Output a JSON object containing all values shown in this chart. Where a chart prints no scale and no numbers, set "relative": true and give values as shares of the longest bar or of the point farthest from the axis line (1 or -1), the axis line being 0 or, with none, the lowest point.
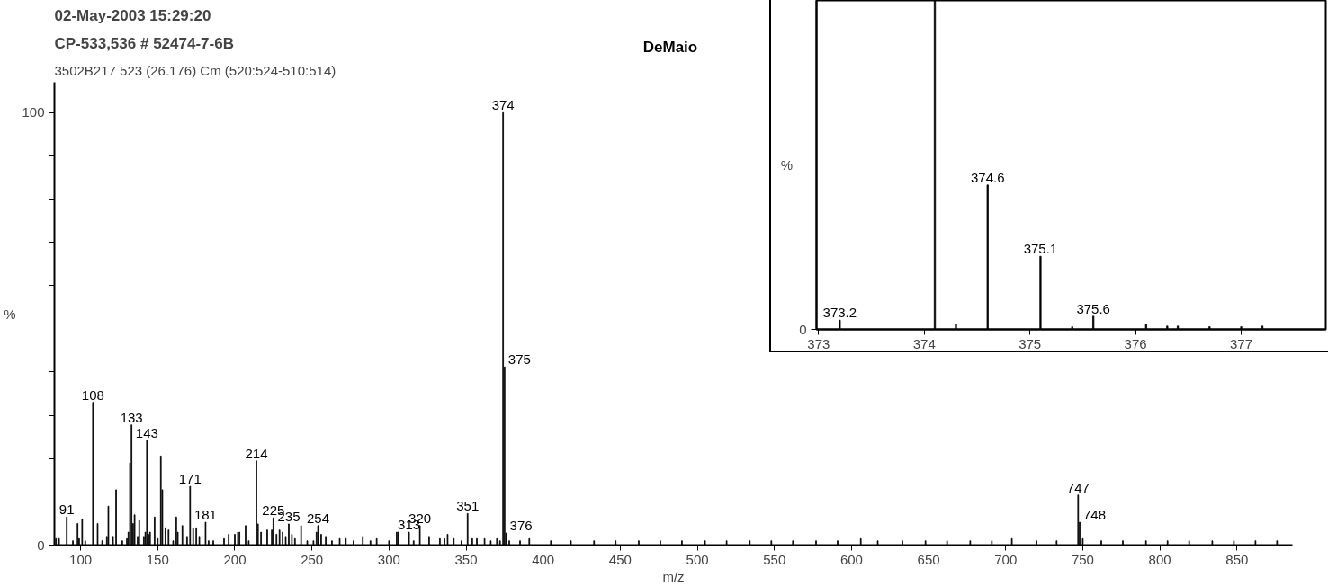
{
  "chart_data": [
    {
      "type": "bar",
      "title": "02-May-2003 15:29:20",
      "subtitle": "CP-533,536 # 52474-7-6B",
      "xlabel": "m/z",
      "ylabel": "%",
      "annotations": [
        "3502B217 523 (26.176) Cm (520:524-510:514)",
        "DeMaio",
        {
          "text": "91",
          "x": 91,
          "y": 6.5
        },
        {
          "text": "108",
          "x": 108,
          "y": 33
        },
        {
          "text": "133",
          "x": 133,
          "y": 27.8
        },
        {
          "text": "143",
          "x": 143,
          "y": 24.3
        },
        {
          "text": "171",
          "x": 171,
          "y": 13.6
        },
        {
          "text": "181",
          "x": 181,
          "y": 5.3
        },
        {
          "text": "214",
          "x": 214,
          "y": 19.5
        },
        {
          "text": "225",
          "x": 225,
          "y": 6.3
        },
        {
          "text": "235",
          "x": 235,
          "y": 4.9
        },
        {
          "text": "254",
          "x": 254,
          "y": 4.5
        },
        {
          "text": "313",
          "x": 313,
          "y": 3
        },
        {
          "text": "320",
          "x": 320,
          "y": 4.5
        },
        {
          "text": "351",
          "x": 351,
          "y": 7.3
        },
        {
          "text": "374",
          "x": 374,
          "y": 100
        },
        {
          "text": "375",
          "x": 375,
          "y": 41.2
        },
        {
          "text": "376",
          "x": 376,
          "y": 2.8
        },
        {
          "text": "747",
          "x": 747,
          "y": 11.6
        },
        {
          "text": "748",
          "x": 748,
          "y": 5.3
        }
      ],
      "x": [
        84,
        86,
        91,
        95,
        98,
        99,
        101,
        103,
        108,
        111,
        114,
        117,
        118,
        121,
        123,
        127,
        130,
        131,
        132,
        133,
        134,
        135,
        137,
        138,
        141,
        142,
        143,
        144,
        145,
        148,
        150,
        152,
        153,
        155,
        157,
        160,
        162,
        163,
        166,
        169,
        171,
        173,
        175,
        177,
        181,
        183,
        186,
        193,
        196,
        200,
        202,
        203,
        207,
        209,
        214,
        215,
        217,
        221,
        224,
        225,
        227,
        229,
        231,
        233,
        235,
        237,
        239,
        243,
        247,
        251,
        253,
        254,
        256,
        259,
        263,
        268,
        272,
        277,
        283,
        288,
        292,
        300,
        305,
        306,
        313,
        316,
        320,
        326,
        333,
        336,
        338,
        342,
        347,
        351,
        354,
        357,
        362,
        366,
        370,
        372,
        374,
        375,
        376,
        378,
        385,
        391,
        405,
        418,
        433,
        447,
        462,
        476,
        490,
        505,
        519,
        534,
        548,
        562,
        577,
        591,
        606,
        617,
        633,
        648,
        662,
        677,
        691,
        704,
        720,
        733,
        747,
        748,
        750,
        762,
        776,
        791,
        805,
        819,
        834,
        848,
        862,
        876
      ],
      "values": [
        1.5,
        1.5,
        6.5,
        1,
        5,
        1.5,
        6,
        1,
        33,
        5,
        1,
        2,
        9,
        2,
        12.8,
        1,
        1.5,
        3,
        19,
        27.8,
        5,
        7,
        2,
        5.7,
        2,
        3,
        24.3,
        2.5,
        3,
        6.5,
        1.5,
        20.6,
        12.8,
        4,
        3.5,
        1,
        6.5,
        3,
        4.5,
        2,
        13.6,
        4,
        4,
        2,
        5.3,
        1,
        1,
        1.5,
        2.5,
        2.5,
        3,
        3,
        4.5,
        1,
        19.5,
        4.9,
        3,
        3.5,
        3.5,
        6.3,
        2.5,
        3.5,
        3,
        2,
        4.9,
        2.5,
        1.5,
        4.5,
        1,
        1,
        3,
        4.5,
        2.5,
        2,
        1,
        1.5,
        1.5,
        1,
        2,
        1,
        1.5,
        1,
        3,
        3,
        3,
        1,
        4.5,
        2,
        1.5,
        1.5,
        2.5,
        1.5,
        1,
        7.3,
        1.5,
        1.5,
        1.5,
        1,
        1.5,
        1,
        100,
        41.2,
        2.8,
        1,
        1,
        1.5,
        1,
        1,
        1,
        1,
        1,
        1,
        1,
        1,
        1,
        1,
        1,
        1,
        1,
        1,
        1.5,
        1,
        1,
        1,
        1,
        1,
        1,
        1.5,
        1,
        1,
        11.6,
        5.3,
        1.5,
        1,
        1,
        1,
        1,
        1,
        1,
        1,
        1,
        1
      ],
      "color": "#000000",
      "xlim": [
        83,
        886
      ],
      "xticks": [
        100,
        150,
        200,
        250,
        300,
        350,
        400,
        450,
        500,
        550,
        600,
        650,
        700,
        750,
        800,
        850
      ],
      "ylim": [
        0,
        107
      ],
      "yticks": [
        0,
        {
          "value": 10,
          "label": null
        },
        {
          "value": 20,
          "label": null
        },
        {
          "value": 30,
          "label": null
        },
        {
          "value": 40,
          "label": null
        },
        {
          "value": 60,
          "label": null
        },
        {
          "value": 70,
          "label": null
        },
        {
          "value": 80,
          "label": null
        },
        {
          "value": 90,
          "label": null
        },
        100
      ],
      "grid": false
    },
    {
      "type": "bar",
      "ylabel": "%",
      "relative": true,
      "annotations": [
        "0",
        {
          "text": "373.2",
          "x": 373.2,
          "y": 0.028
        },
        {
          "text": "374.6",
          "x": 374.6,
          "y": 0.439
        },
        {
          "text": "375.1",
          "x": 375.1,
          "y": 0.222
        },
        {
          "text": "375.6",
          "x": 375.6,
          "y": 0.04
        }
      ],
      "x": [
        373.2,
        374.1,
        374.3,
        374.6,
        375.1,
        375.4,
        375.6,
        376.1,
        376.3,
        376.4,
        376.7,
        377.0,
        377.2
      ],
      "values": [
        0.028,
        1,
        0.015,
        0.439,
        0.222,
        0.008,
        0.04,
        0.015,
        0.01,
        0.01,
        0.008,
        0.008,
        0.01
      ],
      "color": "#000000",
      "xlim": [
        372.98,
        377.8
      ],
      "xticks": [
        373,
        374,
        375,
        376,
        377
      ],
      "grid": false
    }
  ]
}
